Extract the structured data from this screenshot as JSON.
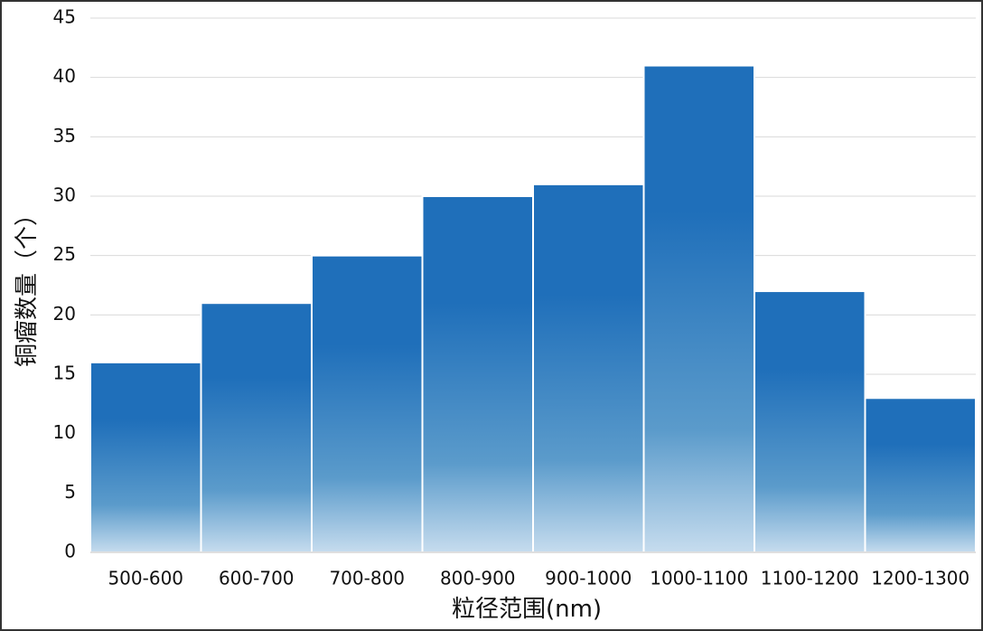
{
  "chart_data": {
    "type": "bar",
    "x_label": "粒径范围(nm)",
    "y_label": "铜瘤数量（个）",
    "categories": [
      "500-600",
      "600-700",
      "700-800",
      "800-900",
      "900-1000",
      "1000-1100",
      "1100-1200",
      "1200-1300"
    ],
    "values": [
      16,
      21,
      25,
      30,
      31,
      41,
      22,
      13
    ],
    "color": "#1f6fba",
    "ylim": [
      0,
      45
    ],
    "yticks": [
      0,
      5,
      10,
      15,
      20,
      25,
      30,
      35,
      40,
      45
    ],
    "grid": true
  }
}
